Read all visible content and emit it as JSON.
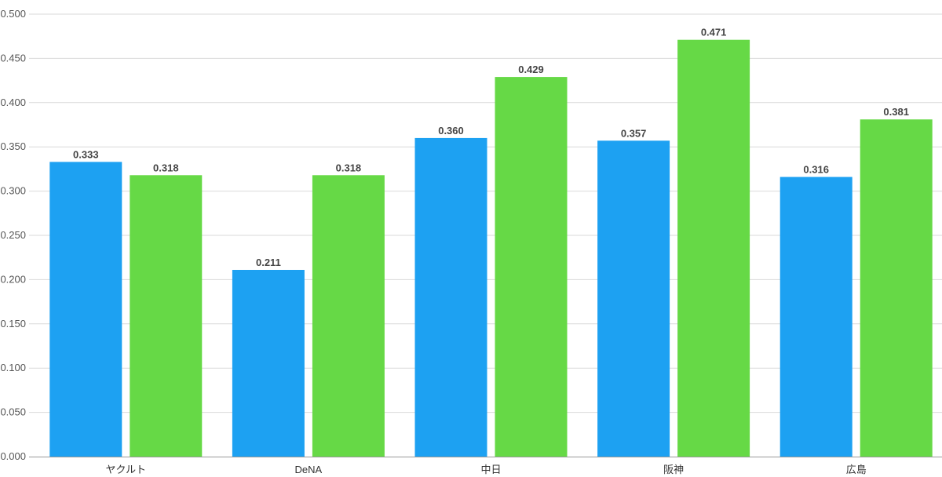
{
  "chart_data": {
    "type": "bar",
    "categories": [
      "ヤクルト",
      "DeNA",
      "中日",
      "阪神",
      "広島"
    ],
    "series": [
      {
        "values": [
          0.333,
          0.211,
          0.36,
          0.357,
          0.316
        ],
        "color": "#1da1f2"
      },
      {
        "values": [
          0.318,
          0.318,
          0.429,
          0.471,
          0.381
        ],
        "color": "#66d946"
      }
    ],
    "data_labels": [
      [
        "0.333",
        "0.211",
        "0.360",
        "0.357",
        "0.316"
      ],
      [
        "0.318",
        "0.318",
        "0.429",
        "0.471",
        "0.381"
      ]
    ],
    "y_ticks": [
      "0.000",
      "0.050",
      "0.100",
      "0.150",
      "0.200",
      "0.250",
      "0.300",
      "0.350",
      "0.400",
      "0.450",
      "0.500"
    ],
    "ylim": [
      0,
      0.5
    ],
    "grid": true,
    "legend": "none"
  }
}
